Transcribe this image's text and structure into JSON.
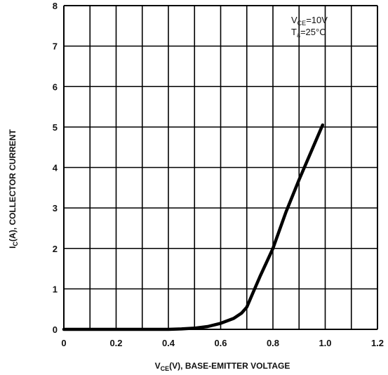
{
  "chart_data": {
    "type": "line",
    "xlabel": "V",
    "xlabel_sub": "CE",
    "xlabel_rest": "(V), BASE-EMITTER VOLTAGE",
    "ylabel": "I",
    "ylabel_sub": "C",
    "ylabel_rest": "(A), COLLECTOR CURRENT",
    "xlim": [
      0,
      1.2
    ],
    "ylim": [
      0,
      8
    ],
    "xticks": [
      "0",
      "0.2",
      "0.4",
      "0.6",
      "0.8",
      "1.0",
      "1.2"
    ],
    "yticks": [
      "0",
      "1",
      "2",
      "3",
      "4",
      "5",
      "6",
      "7",
      "8"
    ],
    "x_grid_step": 0.1,
    "y_grid_step": 1,
    "grid": true,
    "legend_placement": "top-right",
    "annotations": [
      {
        "main": "V",
        "sub": "CE",
        "rest": "=10V"
      },
      {
        "main": "T",
        "sub": "a",
        "rest": "=25°C"
      }
    ],
    "series": [
      {
        "x": [
          0,
          0.1,
          0.2,
          0.3,
          0.4,
          0.45,
          0.5,
          0.55,
          0.6,
          0.65,
          0.68,
          0.7,
          0.72,
          0.75,
          0.8,
          0.85,
          0.9,
          0.95,
          0.99
        ],
        "y": [
          0,
          0,
          0,
          0,
          0,
          0.01,
          0.03,
          0.07,
          0.15,
          0.27,
          0.4,
          0.55,
          0.85,
          1.3,
          2.0,
          2.9,
          3.7,
          4.45,
          5.05
        ]
      }
    ]
  }
}
